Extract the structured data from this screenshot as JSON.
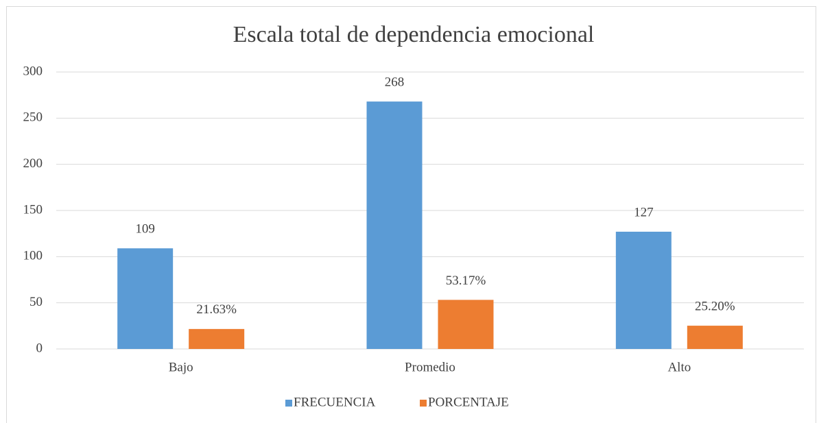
{
  "chart_data": {
    "type": "bar",
    "title": "Escala total de dependencia emocional",
    "categories": [
      "Bajo",
      "Promedio",
      "Alto"
    ],
    "series": [
      {
        "name": "FRECUENCIA",
        "color": "#5b9bd5",
        "values": [
          109,
          268,
          127
        ]
      },
      {
        "name": "PORCENTAJE",
        "color": "#ed7d31",
        "values": [
          21.63,
          53.17,
          25.2
        ],
        "value_labels": [
          "21.63%",
          "53.17%",
          "25.20%"
        ]
      }
    ],
    "ylim": [
      0,
      300
    ],
    "yticks": [
      0,
      50,
      100,
      150,
      200,
      250,
      300
    ],
    "grid": true,
    "legend": "bottom"
  }
}
